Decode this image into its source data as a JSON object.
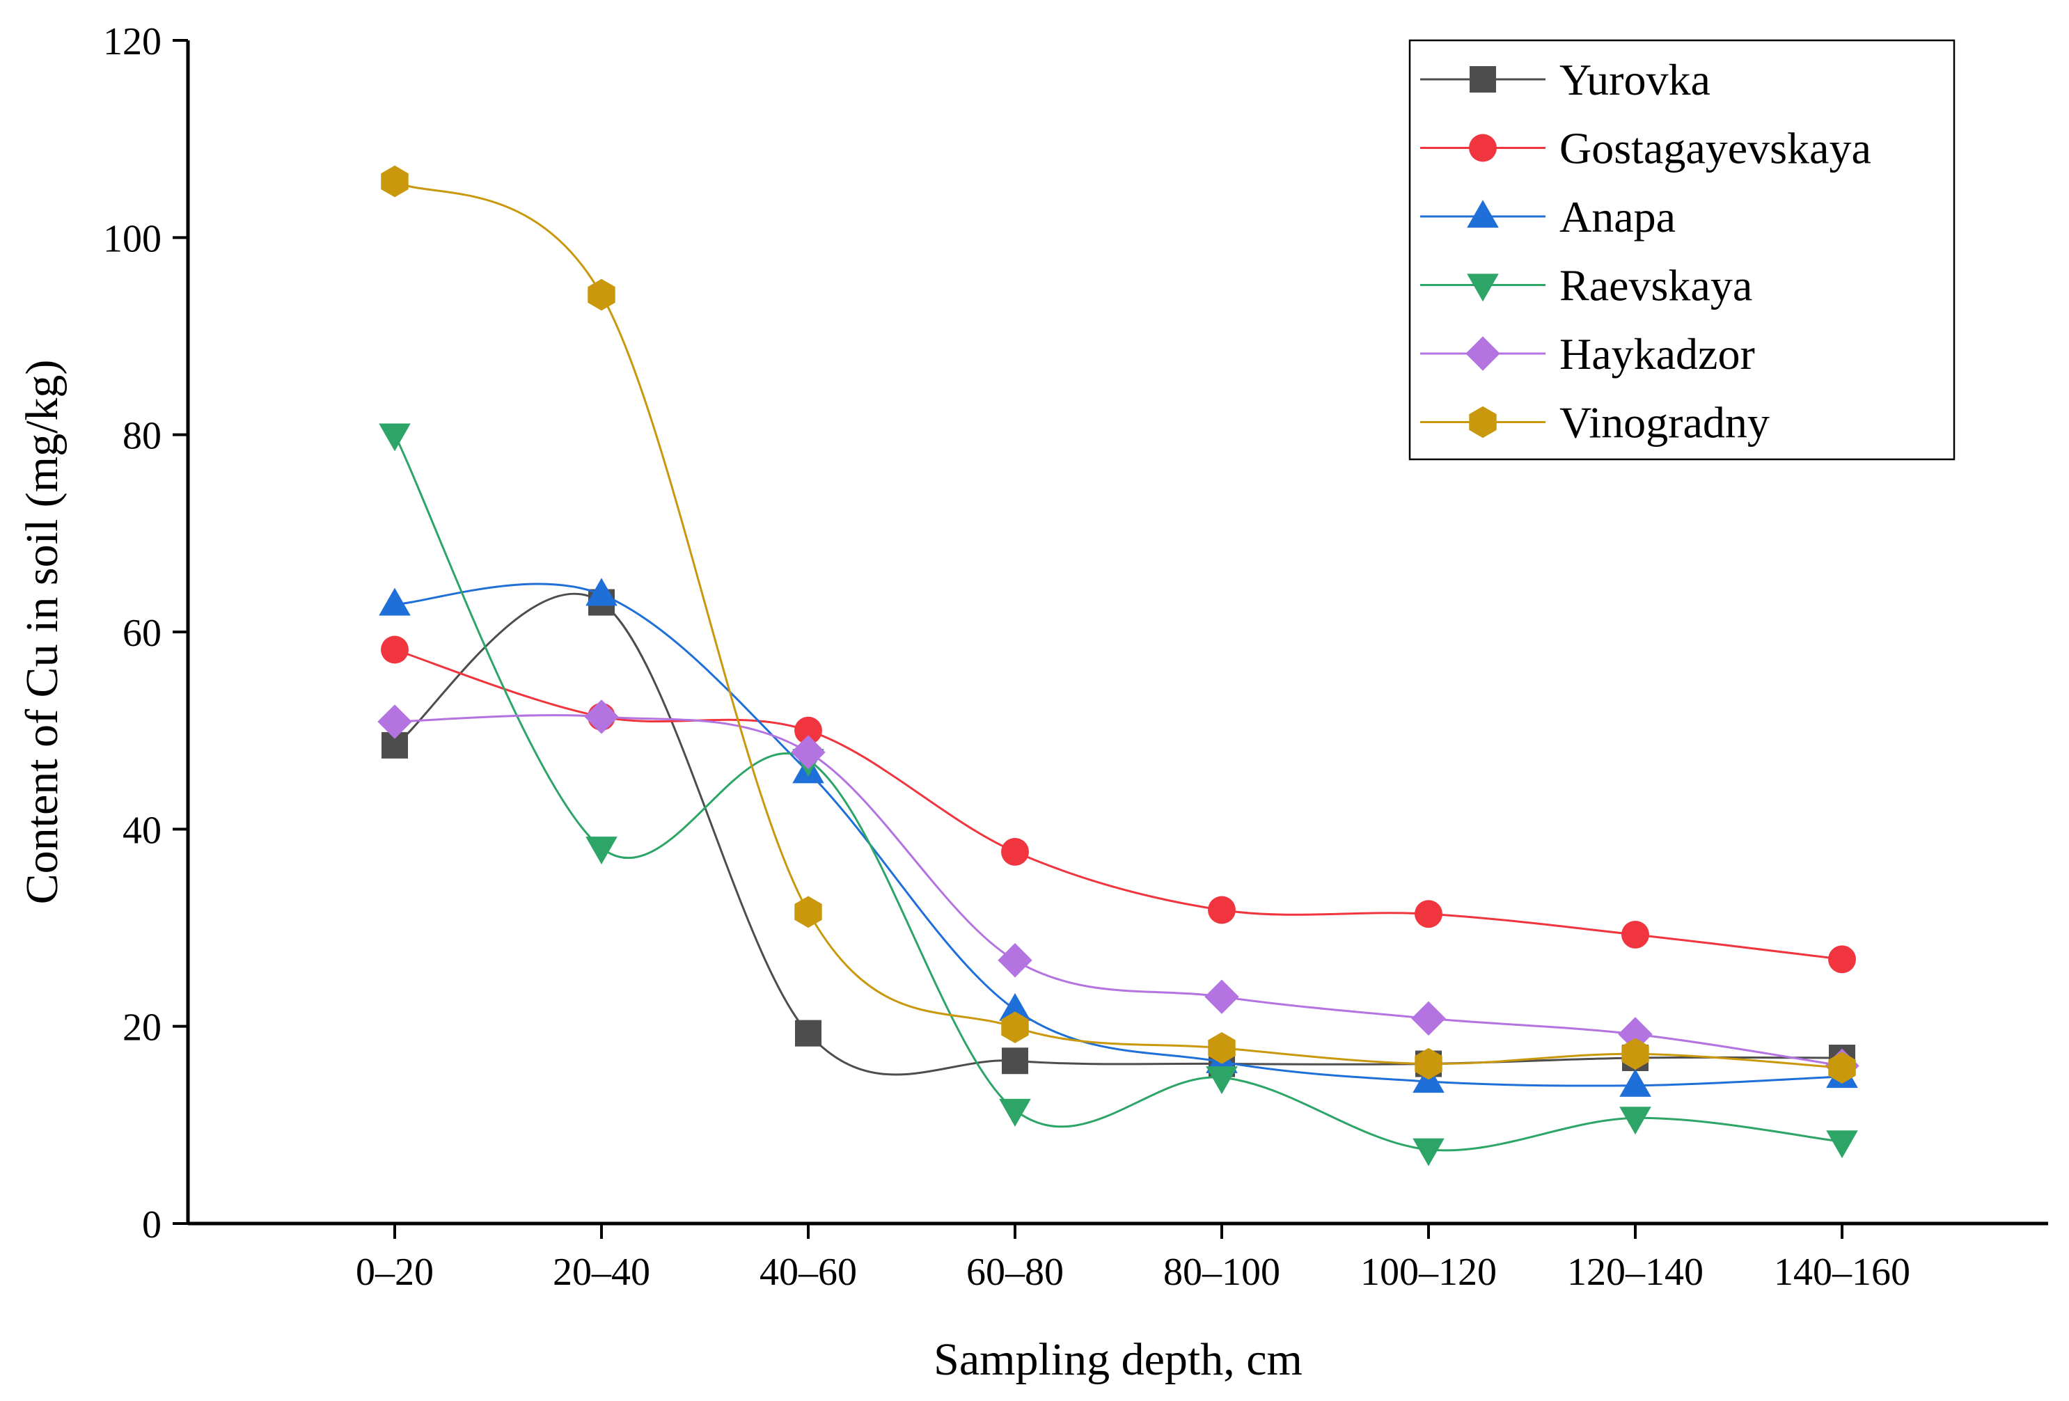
{
  "chart_data": {
    "type": "line",
    "title": "",
    "xlabel": "Sampling depth, cm",
    "ylabel": "Content of Cu in soil (mg/kg)",
    "categories": [
      "0–20",
      "20–40",
      "40–60",
      "60–80",
      "80–100",
      "100–120",
      "120–140",
      "140–160"
    ],
    "ylim": [
      0,
      120
    ],
    "yticks": [
      0,
      20,
      40,
      60,
      80,
      100,
      120
    ],
    "ytick_labels": [
      "0",
      "20",
      "40",
      "60",
      "80",
      "100",
      "120"
    ],
    "grid": false,
    "legend_position": "top-right",
    "series": [
      {
        "name": "Yurovka",
        "marker": "square",
        "color": "#4d4d4d",
        "values": [
          48.5,
          63.0,
          19.3,
          16.5,
          16.2,
          16.2,
          16.8,
          16.8
        ]
      },
      {
        "name": "Gostagayevskaya",
        "marker": "circle",
        "color": "#f0353f",
        "values": [
          58.2,
          51.4,
          50.0,
          37.7,
          31.8,
          31.4,
          29.3,
          26.8
        ]
      },
      {
        "name": "Anapa",
        "marker": "triangle-up",
        "color": "#1f6fd9",
        "values": [
          62.8,
          63.8,
          45.8,
          21.7,
          16.4,
          14.4,
          14.0,
          14.9
        ]
      },
      {
        "name": "Raevskaya",
        "marker": "triangle-down",
        "color": "#2ca567",
        "values": [
          80.0,
          38.1,
          47.0,
          11.5,
          14.8,
          7.5,
          10.7,
          8.3
        ]
      },
      {
        "name": "Haykadzor",
        "marker": "diamond",
        "color": "#b373e0",
        "values": [
          50.9,
          51.4,
          47.8,
          26.7,
          23.0,
          20.8,
          19.2,
          16.0
        ]
      },
      {
        "name": "Vinogradny",
        "marker": "hexagon",
        "color": "#c9980d",
        "values": [
          105.7,
          94.2,
          31.6,
          19.9,
          17.8,
          16.2,
          17.2,
          15.8
        ]
      }
    ]
  }
}
